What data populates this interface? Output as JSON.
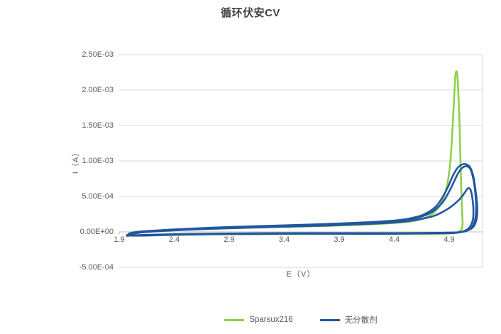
{
  "chart_data": {
    "type": "line",
    "title": "循环伏安CV",
    "xlabel": "E（V）",
    "ylabel": "I（A）",
    "xlim": [
      1.9,
      5.2
    ],
    "ylim": [
      -0.0005,
      0.0025
    ],
    "grid": "horizontal",
    "legend_position": "bottom",
    "x_ticks": [
      {
        "label": "1.9",
        "value": 1.9
      },
      {
        "label": "2.4",
        "value": 2.4
      },
      {
        "label": "2.9",
        "value": 2.9
      },
      {
        "label": "3.4",
        "value": 3.4
      },
      {
        "label": "3.9",
        "value": 3.9
      },
      {
        "label": "4.4",
        "value": 4.4
      },
      {
        "label": "4.9",
        "value": 4.9
      }
    ],
    "y_ticks": [
      {
        "label": "2.50E-03",
        "value": 0.0025
      },
      {
        "label": "2.00E-03",
        "value": 0.002
      },
      {
        "label": "1.50E-03",
        "value": 0.0015
      },
      {
        "label": "1.00E-03",
        "value": 0.001
      },
      {
        "label": "5.00E-04",
        "value": 0.0005
      },
      {
        "label": "0.00E+00",
        "value": 0
      },
      {
        "label": "-5.00E-04",
        "value": -0.0005
      }
    ],
    "series": [
      {
        "name": "Sparsux216",
        "color": "#90cf4a",
        "peak_current": 0.00226,
        "peak_potential": 4.96,
        "cycles": [
          [
            [
              1.98,
              -4e-05
            ],
            [
              2.0,
              -1.2e-05
            ],
            [
              2.08,
              4e-06
            ],
            [
              2.2,
              1.6e-05
            ],
            [
              2.4,
              2.6e-05
            ],
            [
              2.7,
              4e-05
            ],
            [
              2.9,
              5e-05
            ],
            [
              3.2,
              6.2e-05
            ],
            [
              3.4,
              7e-05
            ],
            [
              3.7,
              8.2e-05
            ],
            [
              3.9,
              9e-05
            ],
            [
              4.1,
              0.000102
            ],
            [
              4.3,
              0.000116
            ],
            [
              4.5,
              0.000138
            ],
            [
              4.6,
              0.00016
            ],
            [
              4.7,
              0.00021
            ],
            [
              4.78,
              0.0003
            ],
            [
              4.84,
              0.00045
            ],
            [
              4.88,
              0.00065
            ],
            [
              4.91,
              0.00098
            ],
            [
              4.93,
              0.00145
            ],
            [
              4.945,
              0.0019
            ],
            [
              4.955,
              0.00218
            ],
            [
              4.963,
              0.00226
            ],
            [
              4.972,
              0.00223
            ],
            [
              4.982,
              0.002
            ],
            [
              4.992,
              0.0016
            ],
            [
              5.0,
              0.00115
            ],
            [
              5.008,
              0.0007
            ],
            [
              5.015,
              0.00038
            ],
            [
              5.02,
              0.0002
            ],
            [
              5.022,
              0.00011
            ],
            [
              5.012,
              4e-05
            ],
            [
              4.99,
              5e-06
            ],
            [
              4.95,
              -1.2e-05
            ],
            [
              4.9,
              -2.2e-05
            ],
            [
              4.7,
              -2.8e-05
            ],
            [
              4.4,
              -3e-05
            ],
            [
              4.0,
              -2.8e-05
            ],
            [
              3.6,
              -3e-05
            ],
            [
              3.2,
              -3.3e-05
            ],
            [
              2.9,
              -3.5e-05
            ],
            [
              2.6,
              -4e-05
            ],
            [
              2.35,
              -4.6e-05
            ],
            [
              2.15,
              -5.2e-05
            ],
            [
              2.02,
              -5.4e-05
            ],
            [
              1.98,
              -4e-05
            ]
          ]
        ]
      },
      {
        "name": "无分散剂",
        "color": "#2057a0",
        "peak_current": 0.000955,
        "peak_potential": 5.05,
        "cycles": [
          [
            [
              1.97,
              -5.5e-05
            ],
            [
              2.0,
              -2e-05
            ],
            [
              2.1,
              5e-06
            ],
            [
              2.4,
              3.5e-05
            ],
            [
              2.9,
              6.8e-05
            ],
            [
              3.4,
              9.2e-05
            ],
            [
              3.9,
              0.000118
            ],
            [
              4.4,
              0.00016
            ],
            [
              4.6,
              0.00021
            ],
            [
              4.7,
              0.00027
            ],
            [
              4.78,
              0.00036
            ],
            [
              4.84,
              0.00049
            ],
            [
              4.89,
              0.00064
            ],
            [
              4.93,
              0.00078
            ],
            [
              4.97,
              0.00089
            ],
            [
              5.01,
              0.000945
            ],
            [
              5.05,
              0.000955
            ],
            [
              5.09,
              0.00091
            ],
            [
              5.12,
              0.00078
            ],
            [
              5.14,
              0.00058
            ],
            [
              5.155,
              0.00036
            ],
            [
              5.15,
              0.00019
            ],
            [
              5.12,
              7e-05
            ],
            [
              5.06,
              1.5e-05
            ],
            [
              4.98,
              -1e-05
            ],
            [
              4.9,
              -1.8e-05
            ],
            [
              4.6,
              -2.2e-05
            ],
            [
              4.2,
              -2.2e-05
            ],
            [
              3.8,
              -2e-05
            ],
            [
              3.4,
              -2e-05
            ],
            [
              3.0,
              -2.4e-05
            ],
            [
              2.6,
              -3e-05
            ],
            [
              2.3,
              -3.8e-05
            ],
            [
              2.05,
              -5e-05
            ],
            [
              1.97,
              -5.5e-05
            ]
          ],
          [
            [
              1.97,
              -5e-05
            ],
            [
              2.1,
              0
            ],
            [
              2.4,
              3e-05
            ],
            [
              2.9,
              6.2e-05
            ],
            [
              3.4,
              8.6e-05
            ],
            [
              3.9,
              0.00011
            ],
            [
              4.4,
              0.00015
            ],
            [
              4.6,
              0.000195
            ],
            [
              4.72,
              0.00026
            ],
            [
              4.8,
              0.00035
            ],
            [
              4.86,
              0.00046
            ],
            [
              4.91,
              0.0006
            ],
            [
              4.95,
              0.00073
            ],
            [
              4.99,
              0.00085
            ],
            [
              5.03,
              0.000915
            ],
            [
              5.07,
              0.00092
            ],
            [
              5.1,
              0.00086
            ],
            [
              5.125,
              0.0007
            ],
            [
              5.14,
              0.0005
            ],
            [
              5.145,
              0.0003
            ],
            [
              5.13,
              0.00014
            ],
            [
              5.09,
              4e-05
            ],
            [
              5.0,
              -5e-06
            ],
            [
              4.9,
              -1.2e-05
            ],
            [
              4.5,
              -1.8e-05
            ],
            [
              4.0,
              -1.8e-05
            ],
            [
              3.5,
              -1.8e-05
            ],
            [
              3.0,
              -2.2e-05
            ],
            [
              2.5,
              -3e-05
            ],
            [
              2.2,
              -4e-05
            ],
            [
              1.97,
              -5e-05
            ]
          ],
          [
            [
              1.97,
              -4.5e-05
            ],
            [
              2.1,
              -8e-06
            ],
            [
              2.4,
              2.2e-05
            ],
            [
              2.9,
              5.2e-05
            ],
            [
              3.4,
              7.4e-05
            ],
            [
              3.9,
              9.6e-05
            ],
            [
              4.4,
              0.000132
            ],
            [
              4.6,
              0.00017
            ],
            [
              4.75,
              0.00022
            ],
            [
              4.85,
              0.00029
            ],
            [
              4.93,
              0.00037
            ],
            [
              5.0,
              0.00047
            ],
            [
              5.04,
              0.00055
            ],
            [
              5.07,
              0.000615
            ],
            [
              5.095,
              0.00059
            ],
            [
              5.11,
              0.00048
            ],
            [
              5.12,
              0.00032
            ],
            [
              5.115,
              0.00017
            ],
            [
              5.08,
              5.5e-05
            ],
            [
              5.01,
              0
            ],
            [
              4.9,
              -1e-05
            ],
            [
              4.4,
              -2.6e-05
            ],
            [
              3.9,
              -2.6e-05
            ],
            [
              3.4,
              -2.6e-05
            ],
            [
              2.9,
              -3e-05
            ],
            [
              2.4,
              -4e-05
            ],
            [
              2.1,
              -5.2e-05
            ],
            [
              1.97,
              -4.5e-05
            ]
          ]
        ]
      }
    ],
    "colors": {
      "gridline": "#d9d9d9",
      "axis_line": "#bfbfbf",
      "tick_label": "#595959",
      "title": "#404040"
    }
  }
}
